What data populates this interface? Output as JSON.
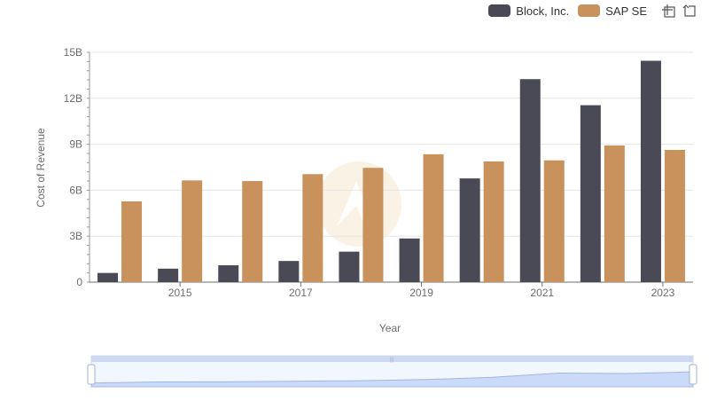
{
  "chart_data": {
    "type": "bar",
    "title": "",
    "xlabel": "Year",
    "ylabel": "Cost of Revenue",
    "ylim": [
      0,
      15000000000
    ],
    "y_ticks": [
      {
        "value": 0,
        "label": "0"
      },
      {
        "value": 3000000000,
        "label": "3B"
      },
      {
        "value": 6000000000,
        "label": "6B"
      },
      {
        "value": 9000000000,
        "label": "9B"
      },
      {
        "value": 12000000000,
        "label": "12B"
      },
      {
        "value": 15000000000,
        "label": "15B"
      }
    ],
    "categories": [
      "2014",
      "2015",
      "2016",
      "2017",
      "2018",
      "2019",
      "2020",
      "2021",
      "2022",
      "2023"
    ],
    "x_tick_labels": [
      "",
      "2015",
      "",
      "2017",
      "",
      "2019",
      "",
      "2021",
      "",
      "2023"
    ],
    "series": [
      {
        "name": "Block, Inc.",
        "color": "#4a4a56",
        "values": [
          600000000,
          880000000,
          1100000000,
          1380000000,
          1990000000,
          2850000000,
          6770000000,
          13250000000,
          11550000000,
          14450000000
        ]
      },
      {
        "name": "SAP SE",
        "color": "#c9915c",
        "values": [
          5270000000,
          6640000000,
          6600000000,
          7050000000,
          7460000000,
          8350000000,
          7880000000,
          7950000000,
          8920000000,
          8630000000
        ]
      }
    ],
    "legend_position": "top-right",
    "grid": true
  },
  "toolbox": {
    "zoom_icon": "zoom-icon",
    "restore_icon": "restore-icon"
  }
}
